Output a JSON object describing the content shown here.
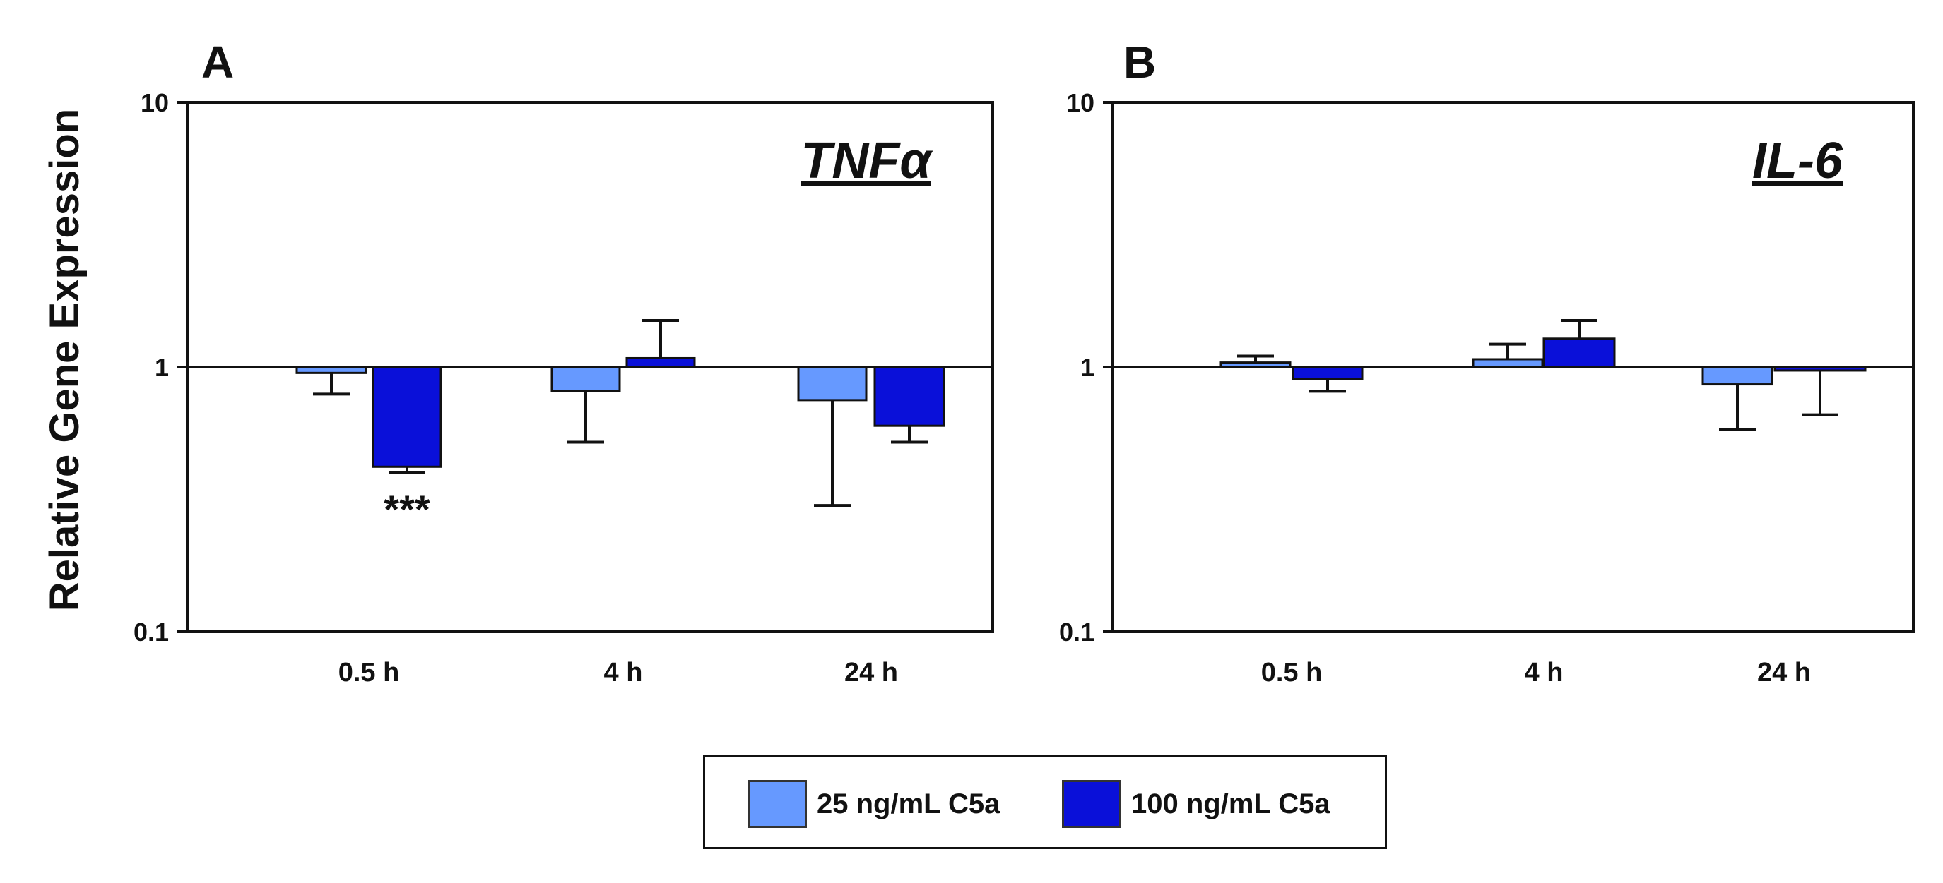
{
  "ylabel": "Relative Gene Expression",
  "colors": {
    "light": "#6699ff",
    "dark": "#0a10d9",
    "axis": "#111111"
  },
  "legend": [
    {
      "label": "25 ng/mL C5a",
      "color": "#6699ff"
    },
    {
      "label": "100 ng/mL C5a",
      "color": "#0a10d9"
    }
  ],
  "chart_data": [
    {
      "type": "bar",
      "panel_label": "A",
      "title": "TNFα",
      "yscale": "log",
      "baseline": 1,
      "ylim": [
        0.1,
        10
      ],
      "yticks": [
        "10",
        "1",
        "0.1"
      ],
      "ytick_values": [
        10,
        1,
        0.1
      ],
      "categories": [
        "0.5 h",
        "4 h",
        "24 h"
      ],
      "series": [
        {
          "name": "25 ng/mL C5a",
          "values": [
            0.95,
            0.81,
            0.75
          ],
          "error_bound": [
            0.79,
            0.52,
            0.3
          ]
        },
        {
          "name": "100 ng/mL C5a",
          "values": [
            0.42,
            1.08,
            0.6
          ],
          "error_bound": [
            0.4,
            1.5,
            0.52
          ]
        }
      ],
      "annotations": [
        {
          "text": "***",
          "category": "0.5 h",
          "series": "100 ng/mL C5a"
        }
      ]
    },
    {
      "type": "bar",
      "panel_label": "B",
      "title": "IL-6",
      "yscale": "log",
      "baseline": 1,
      "ylim": [
        0.1,
        10
      ],
      "yticks": [
        "10",
        "1",
        "0.1"
      ],
      "ytick_values": [
        10,
        1,
        0.1
      ],
      "categories": [
        "0.5 h",
        "4 h",
        "24 h"
      ],
      "series": [
        {
          "name": "25 ng/mL C5a",
          "values": [
            1.04,
            1.07,
            0.86
          ],
          "error_bound": [
            1.1,
            1.22,
            0.58
          ]
        },
        {
          "name": "100 ng/mL C5a",
          "values": [
            0.9,
            1.28,
            0.97
          ],
          "error_bound": [
            0.81,
            1.5,
            0.66
          ]
        }
      ],
      "annotations": []
    }
  ]
}
